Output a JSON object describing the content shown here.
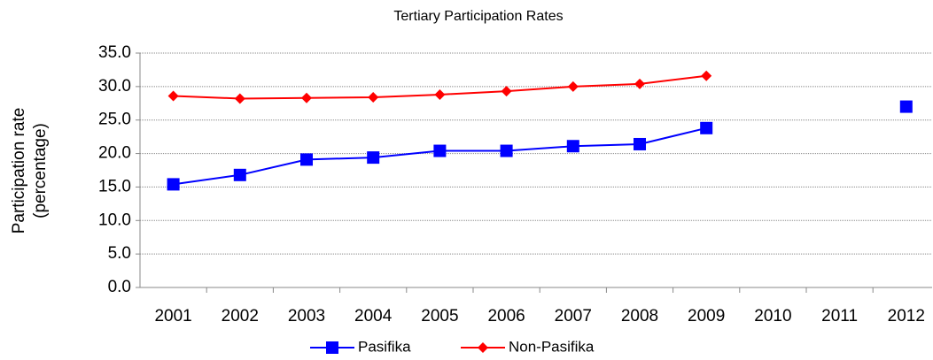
{
  "chart_data": {
    "type": "line",
    "title": "Tertiary Participation Rates",
    "ylabel": [
      "Participation rate",
      "(percentage)"
    ],
    "categories": [
      "2001",
      "2002",
      "2003",
      "2004",
      "2005",
      "2006",
      "2007",
      "2008",
      "2009",
      "2010",
      "2011",
      "2012"
    ],
    "series": [
      {
        "name": "Pasifika",
        "color": "#0000ff",
        "marker": "square",
        "values": [
          15.4,
          16.8,
          19.1,
          19.4,
          20.4,
          20.4,
          21.1,
          21.4,
          23.8,
          null,
          null,
          27.0
        ]
      },
      {
        "name": "Non-Pasifika",
        "color": "#ff0000",
        "marker": "diamond",
        "values": [
          28.6,
          28.2,
          28.3,
          28.4,
          28.8,
          29.3,
          30.0,
          30.4,
          31.6,
          null,
          null,
          null
        ]
      }
    ],
    "ylim": [
      0,
      35
    ],
    "yticks": [
      {
        "value": 0,
        "label": "0.0"
      },
      {
        "value": 5,
        "label": "5.0"
      },
      {
        "value": 10,
        "label": "10.0"
      },
      {
        "value": 15,
        "label": "15.0"
      },
      {
        "value": 20,
        "label": "20.0"
      },
      {
        "value": 25,
        "label": "25.0"
      },
      {
        "value": 30,
        "label": "30.0"
      },
      {
        "value": 35,
        "label": "35.0"
      }
    ],
    "grid": true,
    "legend": "bottom"
  }
}
